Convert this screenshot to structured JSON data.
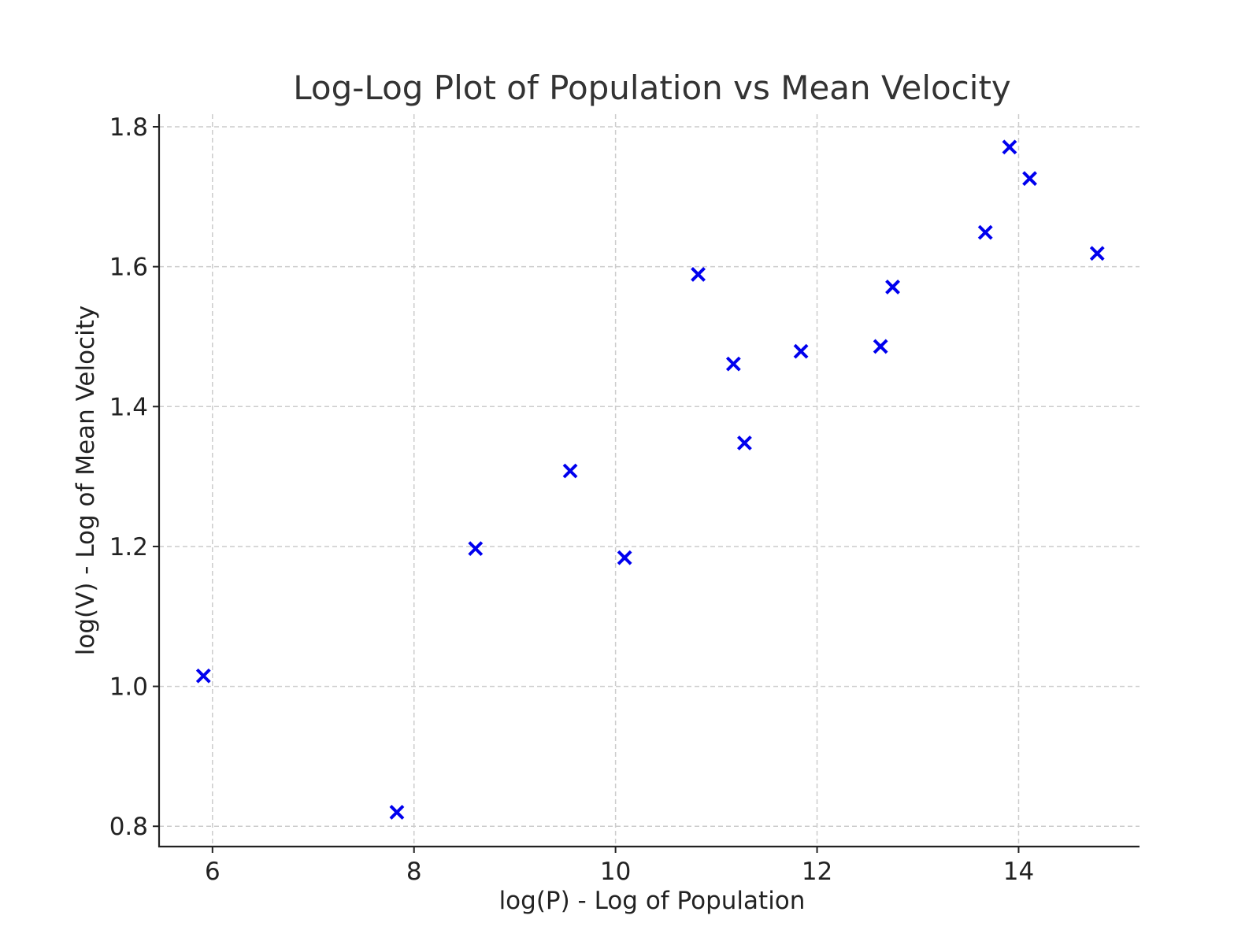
{
  "chart_data": {
    "type": "scatter",
    "title": "Log-Log Plot of Population vs Mean Velocity",
    "xlabel": "log(P) - Log of Population",
    "ylabel": "log(V) - Log of Mean Velocity",
    "xlim": [
      5.47,
      15.2
    ],
    "ylim": [
      0.771,
      1.818
    ],
    "xticks": [
      6,
      8,
      10,
      12,
      14
    ],
    "xtick_labels": [
      "6",
      "8",
      "10",
      "12",
      "14"
    ],
    "yticks": [
      0.8,
      1.0,
      1.2,
      1.4,
      1.6,
      1.8
    ],
    "ytick_labels": [
      "0.8",
      "1.0",
      "1.2",
      "1.4",
      "1.6",
      "1.8"
    ],
    "grid": true,
    "marker": "x",
    "color": "#0000ee",
    "points": [
      {
        "x": 5.91,
        "y": 1.015
      },
      {
        "x": 7.83,
        "y": 0.82
      },
      {
        "x": 8.61,
        "y": 1.197
      },
      {
        "x": 9.55,
        "y": 1.308
      },
      {
        "x": 10.09,
        "y": 1.184
      },
      {
        "x": 10.82,
        "y": 1.589
      },
      {
        "x": 11.17,
        "y": 1.461
      },
      {
        "x": 11.28,
        "y": 1.348
      },
      {
        "x": 11.84,
        "y": 1.479
      },
      {
        "x": 12.63,
        "y": 1.486
      },
      {
        "x": 12.75,
        "y": 1.571
      },
      {
        "x": 13.67,
        "y": 1.649
      },
      {
        "x": 13.91,
        "y": 1.771
      },
      {
        "x": 14.11,
        "y": 1.726
      },
      {
        "x": 14.78,
        "y": 1.619
      }
    ]
  }
}
